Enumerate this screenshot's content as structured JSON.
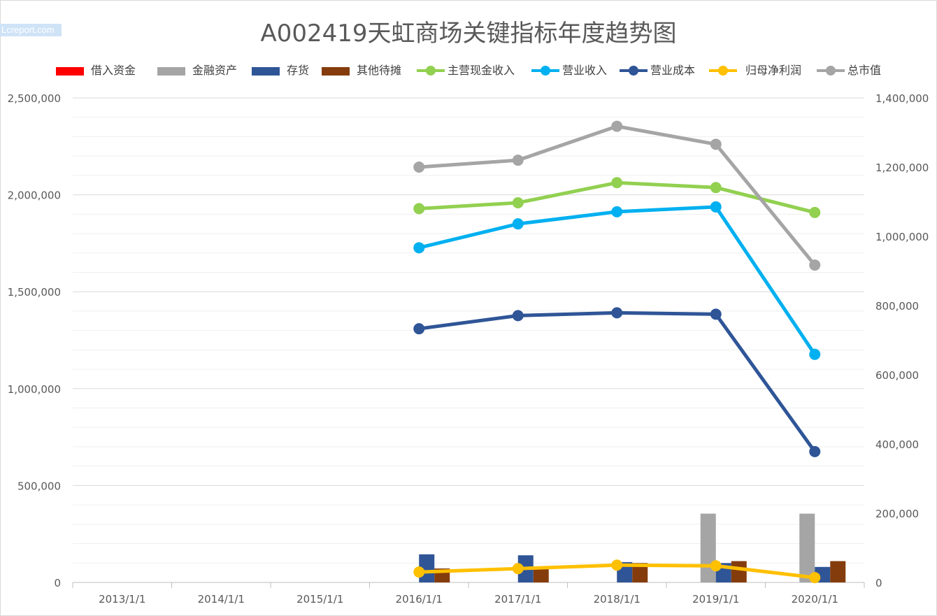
{
  "watermark": "Lcreport.com",
  "chart_data": {
    "type": "bar+line",
    "title": "A002419天虹商场关键指标年度趋势图",
    "categories": [
      "2013/1/1",
      "2014/1/1",
      "2015/1/1",
      "2016/1/1",
      "2017/1/1",
      "2018/1/1",
      "2019/1/1",
      "2020/1/1"
    ],
    "left_axis": {
      "ylim": [
        0,
        2500000
      ],
      "ticks": [
        "0",
        "500,000",
        "1,000,000",
        "1,500,000",
        "2,000,000",
        "2,500,000"
      ]
    },
    "right_axis": {
      "ylim": [
        0,
        1400000
      ],
      "ticks": [
        "0",
        "200,000",
        "400,000",
        "600,000",
        "800,000",
        "1,000,000",
        "1,200,000",
        "1,400,000"
      ]
    },
    "grid": true,
    "legend_position": "top",
    "bar_series": [
      {
        "name": "借入资金",
        "color": "#ff0000",
        "values": [
          null,
          null,
          null,
          0,
          0,
          0,
          0,
          0
        ]
      },
      {
        "name": "金融资产",
        "color": "#a5a5a5",
        "values": [
          null,
          null,
          null,
          0,
          0,
          0,
          355000,
          355000
        ]
      },
      {
        "name": "存货",
        "color": "#2f5597",
        "values": [
          null,
          null,
          null,
          145000,
          140000,
          105000,
          100000,
          80000
        ]
      },
      {
        "name": "其他待摊",
        "color": "#843c0c",
        "values": [
          null,
          null,
          null,
          72000,
          72000,
          100000,
          110000,
          110000
        ]
      }
    ],
    "line_series": [
      {
        "name": "主营现金收入",
        "color": "#92d050",
        "values": [
          null,
          null,
          null,
          1080000,
          1097000,
          1155000,
          1141000,
          1069000
        ]
      },
      {
        "name": "营业收入",
        "color": "#00b0f0",
        "values": [
          null,
          null,
          null,
          967000,
          1036000,
          1071000,
          1085000,
          659000
        ]
      },
      {
        "name": "营业成本",
        "color": "#2f5597",
        "values": [
          null,
          null,
          null,
          733000,
          771000,
          779000,
          775000,
          378000
        ]
      },
      {
        "name": "归母净利润",
        "color": "#ffc000",
        "values": [
          null,
          null,
          null,
          30000,
          40000,
          50000,
          48000,
          14000
        ]
      },
      {
        "name": "总市值",
        "color": "#a5a5a5",
        "values": [
          null,
          null,
          null,
          1200000,
          1220000,
          1318000,
          1266000,
          917000
        ]
      }
    ]
  }
}
